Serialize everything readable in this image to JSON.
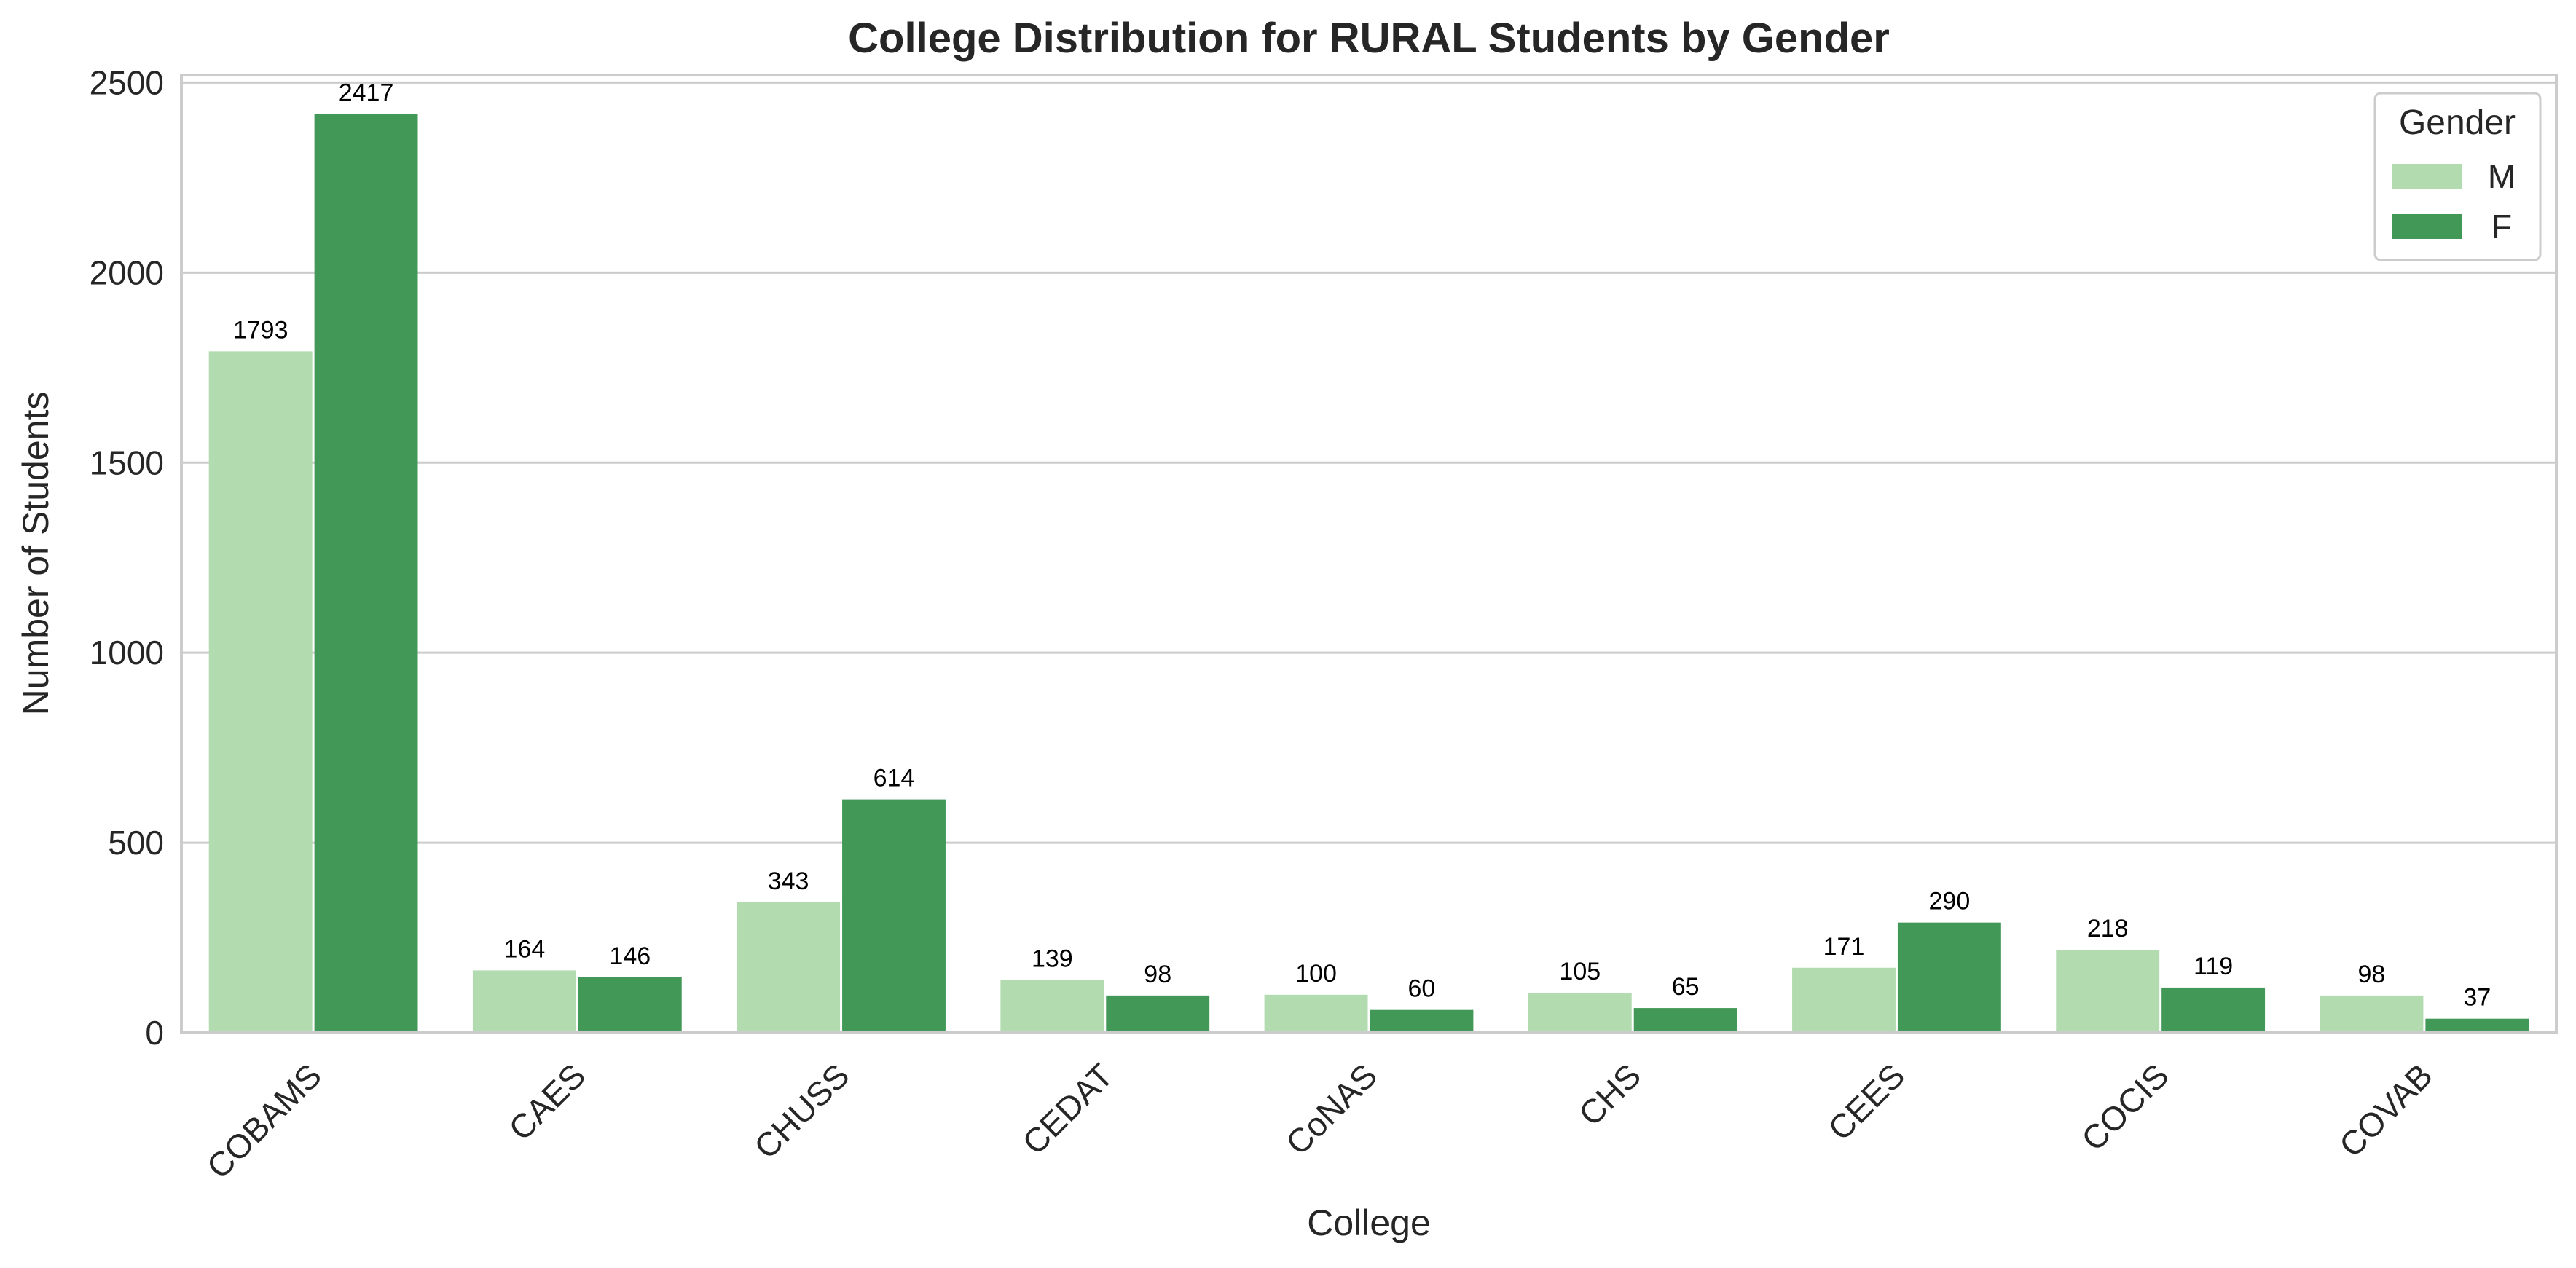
{
  "chart_data": {
    "type": "bar",
    "title": "College Distribution for RURAL Students by Gender",
    "xlabel": "College",
    "ylabel": "Number of Students",
    "categories": [
      "COBAMS",
      "CAES",
      "CHUSS",
      "CEDAT",
      "CoNAS",
      "CHS",
      "CEES",
      "COCIS",
      "COVAB"
    ],
    "series": [
      {
        "name": "M",
        "color": "#b2dbaf",
        "values": [
          1793,
          164,
          343,
          139,
          100,
          105,
          171,
          218,
          98
        ]
      },
      {
        "name": "F",
        "color": "#429857",
        "values": [
          2417,
          146,
          614,
          98,
          60,
          65,
          290,
          119,
          37
        ]
      }
    ],
    "ylim": [
      0,
      2520
    ],
    "yticks": [
      "0",
      "500",
      "1000",
      "1500",
      "2000",
      "2500"
    ],
    "grid": "horizontal",
    "legend": {
      "title": "Gender",
      "position": "top-right"
    },
    "data_labels": true
  }
}
